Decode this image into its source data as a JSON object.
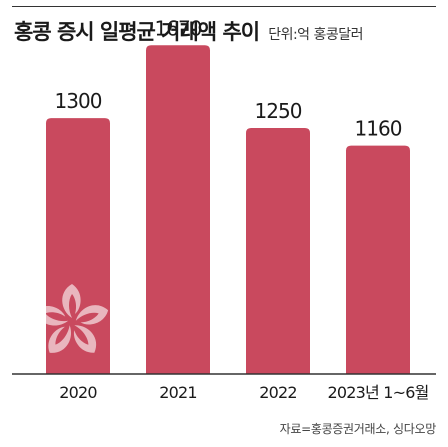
{
  "title": "홍콩 증시 일평균 거래액 추이",
  "unit": "단위:억 홍콩달러",
  "source": "자료=홍콩증권거래소, 싱다오망",
  "colors": {
    "bar": "#c9495e",
    "bar_label": "#1a1a1a",
    "axis": "#333333"
  },
  "chart_data": {
    "type": "bar",
    "title": "홍콩 증시 일평균 거래액 추이",
    "xlabel": "",
    "ylabel": "",
    "unit": "단위:억 홍콩달러",
    "categories": [
      "2020",
      "2021",
      "2022",
      "2023년 1~6월"
    ],
    "values": [
      1300,
      1670,
      1250,
      1160
    ],
    "data_labels": [
      "1300",
      "1670",
      "1250",
      "1160"
    ],
    "ylim": [
      0,
      1900
    ],
    "grid": false,
    "legend": "none"
  }
}
